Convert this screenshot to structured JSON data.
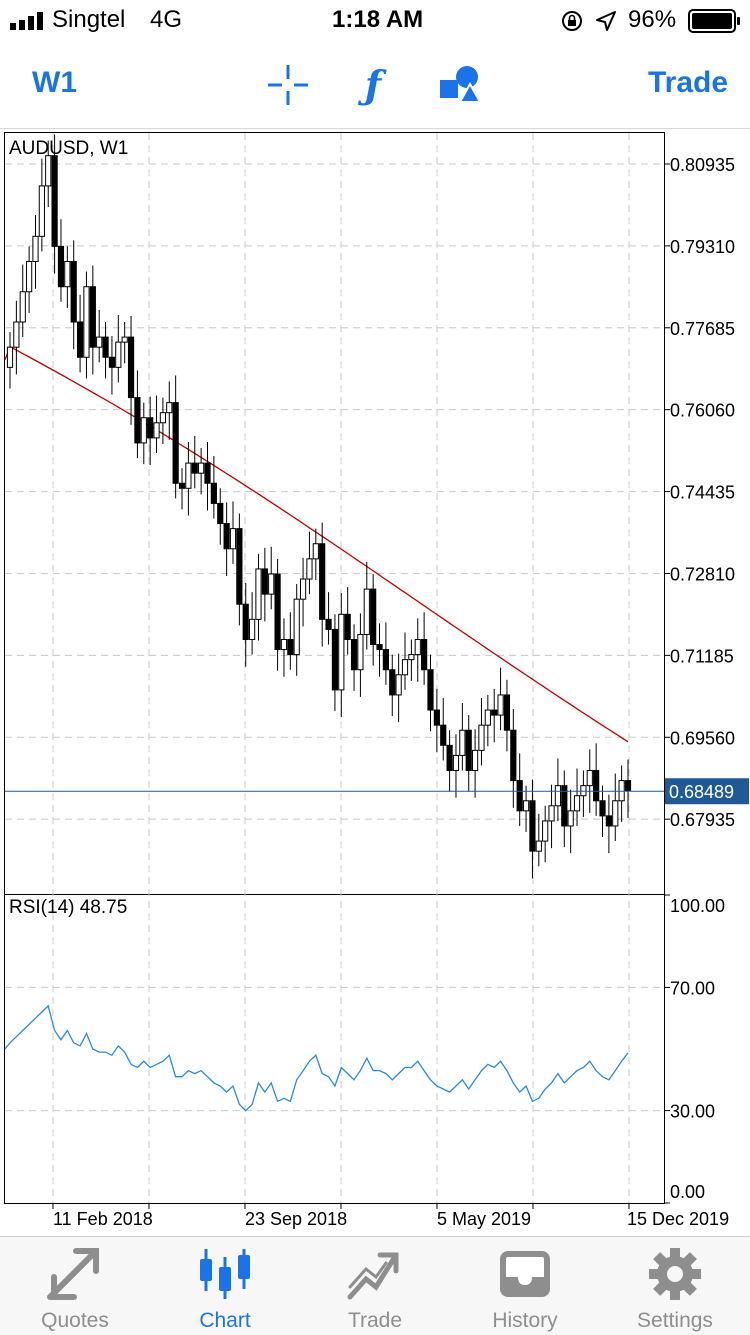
{
  "status_bar": {
    "carrier": "Singtel",
    "network": "4G",
    "time": "1:18 AM",
    "battery": "96%"
  },
  "toolbar": {
    "timeframe": "W1",
    "trade": "Trade",
    "icons": [
      "crosshair-icon",
      "indicator-f-icon",
      "shapes-icon"
    ]
  },
  "chart": {
    "symbol_label": "AUDUSD, W1",
    "price_ticks": [
      "0.80935",
      "0.79310",
      "0.77685",
      "0.76060",
      "0.74435",
      "0.72810",
      "0.71185",
      "0.69560",
      "0.67935"
    ],
    "current_price": "0.68489",
    "rsi_label": "RSI(14) 48.75",
    "rsi_ticks": [
      "100.00",
      "70.00",
      "30.00",
      "0.00"
    ],
    "x_ticks": [
      "11 Feb 2018",
      "23 Sep 2018",
      "5 May 2019",
      "15 Dec 2019"
    ]
  },
  "chart_data": {
    "type": "candlestick",
    "symbol": "AUDUSD",
    "timeframe": "W1",
    "price_range": [
      0.6645,
      0.8155
    ],
    "current_price": 0.68489,
    "closes": [
      0.773,
      0.778,
      0.784,
      0.79,
      0.795,
      0.805,
      0.811,
      0.793,
      0.785,
      0.79,
      0.778,
      0.771,
      0.785,
      0.773,
      0.775,
      0.771,
      0.769,
      0.774,
      0.775,
      0.763,
      0.754,
      0.759,
      0.755,
      0.758,
      0.76,
      0.762,
      0.746,
      0.745,
      0.75,
      0.748,
      0.75,
      0.746,
      0.742,
      0.738,
      0.733,
      0.737,
      0.722,
      0.715,
      0.719,
      0.729,
      0.724,
      0.728,
      0.713,
      0.715,
      0.712,
      0.723,
      0.727,
      0.731,
      0.734,
      0.719,
      0.717,
      0.705,
      0.72,
      0.715,
      0.709,
      0.716,
      0.725,
      0.714,
      0.713,
      0.709,
      0.704,
      0.708,
      0.711,
      0.712,
      0.715,
      0.709,
      0.701,
      0.698,
      0.694,
      0.689,
      0.692,
      0.697,
      0.689,
      0.693,
      0.698,
      0.701,
      0.7,
      0.704,
      0.697,
      0.687,
      0.681,
      0.683,
      0.673,
      0.675,
      0.679,
      0.682,
      0.686,
      0.678,
      0.681,
      0.684,
      0.686,
      0.689,
      0.683,
      0.68,
      0.678,
      0.683,
      0.687,
      0.685
    ],
    "ma_range": [
      0.7731,
      0.6947
    ],
    "rsi": {
      "period": 14,
      "last": 48.75,
      "range": [
        0,
        100
      ],
      "levels": [
        70,
        30
      ],
      "values": [
        52,
        54,
        56,
        58,
        60,
        62,
        64,
        56,
        53,
        56,
        52,
        51,
        55,
        50,
        49,
        49,
        48,
        51,
        49,
        45,
        44,
        46,
        44,
        45,
        46,
        48,
        41,
        41,
        43,
        42,
        43,
        41,
        39,
        38,
        36,
        38,
        32,
        30,
        32,
        39,
        36,
        39,
        33,
        34,
        33,
        40,
        43,
        46,
        48,
        42,
        41,
        38,
        44,
        42,
        40,
        43,
        47,
        43,
        43,
        42,
        40,
        42,
        44,
        44,
        46,
        43,
        40,
        38,
        37,
        36,
        38,
        40,
        37,
        40,
        43,
        45,
        44,
        46,
        43,
        39,
        36,
        38,
        33,
        34,
        37,
        39,
        42,
        39,
        41,
        43,
        44,
        46,
        43,
        41,
        40,
        43,
        46,
        48.75
      ]
    }
  },
  "tabs": [
    {
      "label": "Quotes",
      "icon": "quotes-icon"
    },
    {
      "label": "Chart",
      "icon": "chart-icon",
      "active": true
    },
    {
      "label": "Trade",
      "icon": "trade-icon"
    },
    {
      "label": "History",
      "icon": "history-icon"
    },
    {
      "label": "Settings",
      "icon": "settings-icon"
    }
  ]
}
